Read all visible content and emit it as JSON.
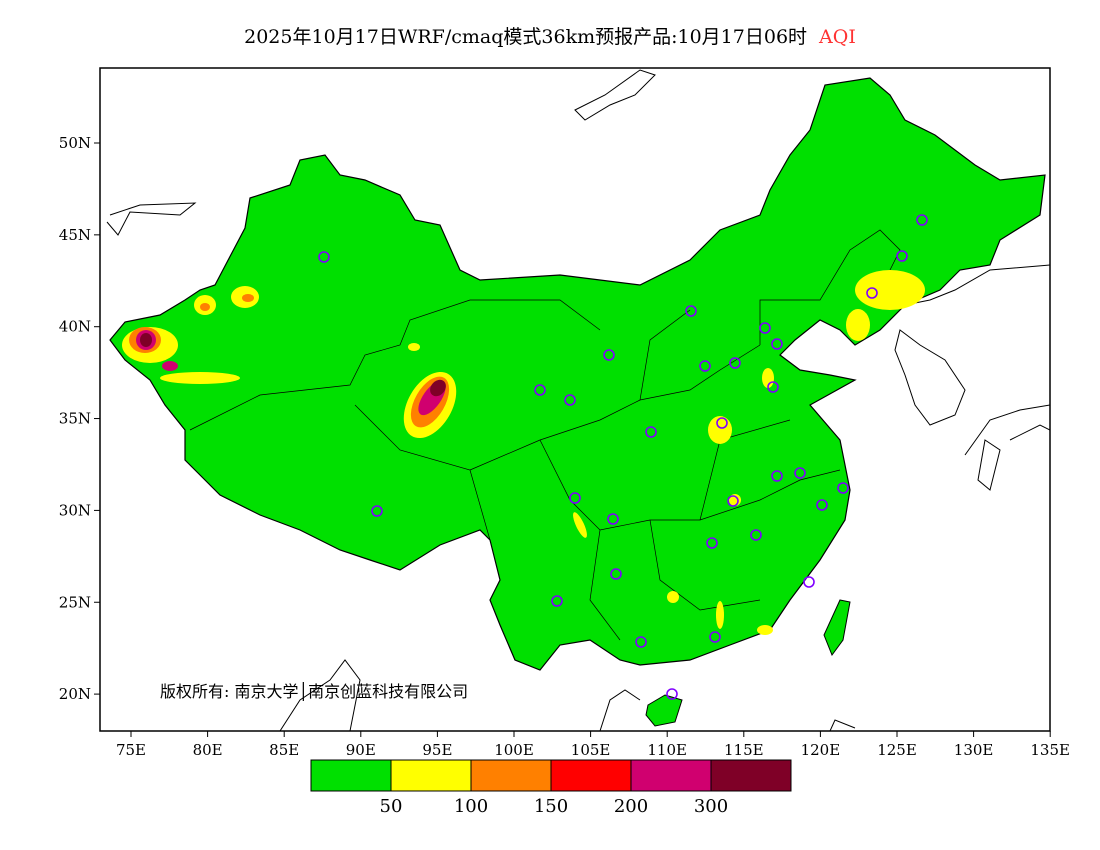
{
  "title": {
    "text": "2025年10月17日WRF/cmaq模式36km预报产品:10月17日06时",
    "variable": "AQI",
    "variable_color": "#ff3333"
  },
  "axes": {
    "lon_ticks": [
      "75E",
      "80E",
      "85E",
      "90E",
      "95E",
      "100E",
      "105E",
      "110E",
      "115E",
      "120E",
      "125E",
      "130E",
      "135E"
    ],
    "lat_ticks": [
      "50N",
      "45N",
      "40N",
      "35N",
      "30N",
      "25N",
      "20N"
    ]
  },
  "copyright": "版权所有: 南京大学│南京创蓝科技有限公司",
  "legend": {
    "colors": [
      "#00e000",
      "#ffff00",
      "#ff8000",
      "#ff0000",
      "#d0006f",
      "#7f0027"
    ],
    "labels": [
      "50",
      "100",
      "150",
      "200",
      "300"
    ]
  },
  "cities_count": 31
}
